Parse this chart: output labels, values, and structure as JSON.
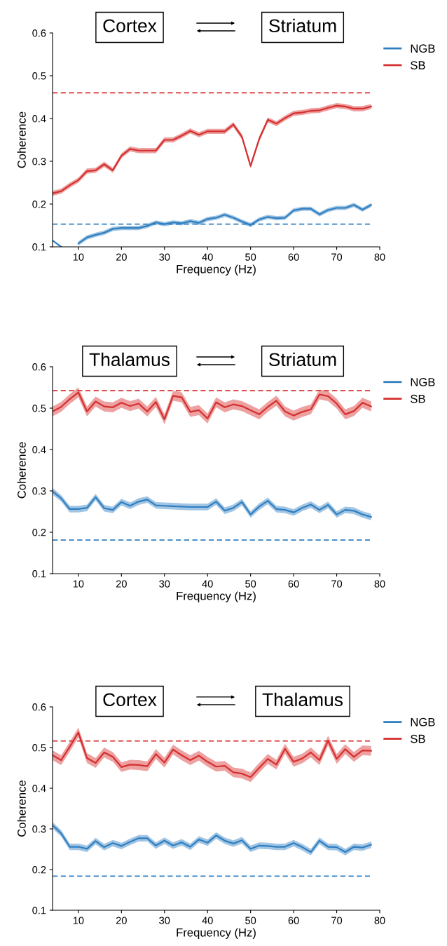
{
  "chart_data": [
    {
      "type": "line",
      "annotations": [
        "Cortex",
        "Striatum"
      ],
      "xlabel": "Frequency (Hz)",
      "ylabel": "Coherence",
      "xlim": [
        4,
        80
      ],
      "xticks": [
        10,
        20,
        30,
        40,
        50,
        60,
        70,
        80
      ],
      "ylim": [
        0.1,
        0.6
      ],
      "yticks": [
        0.1,
        0.2,
        0.3,
        0.4,
        0.5,
        0.6
      ],
      "legend": "right",
      "grid": false,
      "x": [
        4,
        6,
        8,
        10,
        12,
        14,
        16,
        18,
        20,
        22,
        24,
        26,
        28,
        30,
        32,
        34,
        36,
        38,
        40,
        42,
        44,
        46,
        48,
        50,
        52,
        54,
        56,
        58,
        60,
        62,
        64,
        66,
        68,
        70,
        72,
        74,
        76,
        78
      ],
      "series": [
        {
          "name": "NGB",
          "color": "#2f7fc1",
          "values": [
            0.115,
            0.1,
            null,
            0.108,
            0.122,
            0.128,
            0.133,
            0.142,
            0.144,
            0.144,
            0.144,
            0.149,
            0.157,
            0.153,
            0.157,
            0.155,
            0.16,
            0.156,
            0.165,
            0.168,
            0.175,
            0.168,
            0.159,
            0.151,
            0.164,
            0.17,
            0.167,
            0.168,
            0.185,
            0.189,
            0.189,
            0.176,
            0.186,
            0.191,
            0.191,
            0.198,
            0.187,
            0.198
          ],
          "lower": [
            null,
            null,
            null,
            0.103,
            0.117,
            0.123,
            0.128,
            0.137,
            0.139,
            0.139,
            0.139,
            0.144,
            0.152,
            0.148,
            0.152,
            0.15,
            0.155,
            0.151,
            0.16,
            0.163,
            0.17,
            0.163,
            0.154,
            0.146,
            0.159,
            0.165,
            0.162,
            0.163,
            0.18,
            0.184,
            0.184,
            0.171,
            0.181,
            0.186,
            0.186,
            0.193,
            0.182,
            0.193
          ],
          "upper": [
            null,
            null,
            null,
            0.113,
            0.127,
            0.133,
            0.138,
            0.147,
            0.149,
            0.149,
            0.149,
            0.154,
            0.162,
            0.158,
            0.162,
            0.16,
            0.165,
            0.161,
            0.17,
            0.173,
            0.18,
            0.173,
            0.164,
            0.156,
            0.169,
            0.175,
            0.172,
            0.173,
            0.19,
            0.194,
            0.194,
            0.181,
            0.191,
            0.196,
            0.196,
            0.203,
            0.192,
            0.203
          ]
        },
        {
          "name": "SB",
          "color": "#d62f2f",
          "values": [
            0.225,
            0.23,
            0.244,
            0.256,
            0.277,
            0.279,
            0.293,
            0.279,
            0.313,
            0.329,
            0.325,
            0.325,
            0.325,
            0.35,
            0.35,
            0.36,
            0.371,
            0.362,
            0.37,
            0.37,
            0.37,
            0.386,
            0.357,
            0.289,
            0.352,
            0.397,
            0.388,
            0.401,
            0.412,
            0.414,
            0.418,
            0.419,
            0.425,
            0.43,
            0.428,
            0.423,
            0.423,
            0.428
          ],
          "lower": [
            0.219,
            0.224,
            0.238,
            0.25,
            0.271,
            0.273,
            0.287,
            0.273,
            0.307,
            0.323,
            0.319,
            0.319,
            0.319,
            0.344,
            0.344,
            0.354,
            0.365,
            0.356,
            0.364,
            0.364,
            0.364,
            0.38,
            0.351,
            0.283,
            0.346,
            0.391,
            0.382,
            0.395,
            0.406,
            0.408,
            0.412,
            0.413,
            0.419,
            0.424,
            0.422,
            0.417,
            0.417,
            0.422
          ],
          "upper": [
            0.231,
            0.236,
            0.25,
            0.262,
            0.283,
            0.285,
            0.299,
            0.285,
            0.319,
            0.335,
            0.331,
            0.331,
            0.331,
            0.356,
            0.356,
            0.366,
            0.377,
            0.368,
            0.376,
            0.376,
            0.376,
            0.392,
            0.363,
            0.295,
            0.358,
            0.403,
            0.394,
            0.407,
            0.418,
            0.42,
            0.424,
            0.425,
            0.431,
            0.436,
            0.434,
            0.429,
            0.429,
            0.434
          ]
        }
      ],
      "ref_lines": [
        {
          "axis": "y",
          "value": 0.46,
          "color": "#d62f2f",
          "line_style": "dashed"
        },
        {
          "axis": "y",
          "value": 0.153,
          "color": "#2f7fc1",
          "line_style": "dashed"
        }
      ]
    },
    {
      "type": "line",
      "annotations": [
        "Thalamus",
        "Striatum"
      ],
      "xlabel": "Frequency (Hz)",
      "ylabel": "Coherence",
      "xlim": [
        4,
        80
      ],
      "xticks": [
        10,
        20,
        30,
        40,
        50,
        60,
        70,
        80
      ],
      "ylim": [
        0.1,
        0.6
      ],
      "yticks": [
        0.1,
        0.2,
        0.3,
        0.4,
        0.5,
        0.6
      ],
      "legend": "right",
      "grid": false,
      "x": [
        4,
        6,
        8,
        10,
        12,
        14,
        16,
        18,
        20,
        22,
        24,
        26,
        28,
        30,
        32,
        34,
        36,
        38,
        40,
        42,
        44,
        46,
        48,
        50,
        52,
        54,
        56,
        58,
        60,
        62,
        64,
        66,
        68,
        70,
        72,
        74,
        76,
        78
      ],
      "series": [
        {
          "name": "NGB",
          "color": "#2f7fc1",
          "values": [
            0.299,
            0.282,
            0.256,
            0.256,
            0.259,
            0.285,
            0.258,
            0.254,
            0.273,
            0.264,
            0.274,
            0.279,
            0.265,
            0.264,
            0.263,
            0.262,
            0.261,
            0.261,
            0.261,
            0.274,
            0.252,
            0.259,
            0.273,
            0.243,
            0.262,
            0.276,
            0.256,
            0.254,
            0.248,
            0.259,
            0.267,
            0.254,
            0.266,
            0.243,
            0.254,
            0.252,
            0.243,
            0.237
          ],
          "lower": [
            0.291,
            0.274,
            0.248,
            0.248,
            0.251,
            0.277,
            0.25,
            0.246,
            0.265,
            0.256,
            0.266,
            0.271,
            0.257,
            0.256,
            0.255,
            0.254,
            0.253,
            0.253,
            0.253,
            0.266,
            0.244,
            0.251,
            0.265,
            0.235,
            0.254,
            0.268,
            0.248,
            0.246,
            0.24,
            0.251,
            0.259,
            0.246,
            0.258,
            0.235,
            0.246,
            0.244,
            0.235,
            0.229
          ],
          "upper": [
            0.307,
            0.29,
            0.264,
            0.264,
            0.267,
            0.293,
            0.266,
            0.262,
            0.281,
            0.272,
            0.282,
            0.287,
            0.273,
            0.272,
            0.271,
            0.27,
            0.269,
            0.269,
            0.269,
            0.282,
            0.26,
            0.267,
            0.281,
            0.251,
            0.27,
            0.284,
            0.264,
            0.262,
            0.256,
            0.267,
            0.275,
            0.262,
            0.274,
            0.251,
            0.262,
            0.26,
            0.251,
            0.245
          ]
        },
        {
          "name": "SB",
          "color": "#d62f2f",
          "values": [
            0.492,
            0.503,
            0.522,
            0.538,
            0.492,
            0.516,
            0.504,
            0.502,
            0.513,
            0.505,
            0.511,
            0.492,
            0.515,
            0.473,
            0.53,
            0.526,
            0.491,
            0.495,
            0.475,
            0.514,
            0.502,
            0.509,
            0.505,
            0.495,
            0.485,
            0.503,
            0.518,
            0.492,
            0.482,
            0.491,
            0.497,
            0.533,
            0.529,
            0.511,
            0.485,
            0.493,
            0.513,
            0.504
          ],
          "lower": [
            0.48,
            0.491,
            0.51,
            0.526,
            0.48,
            0.504,
            0.492,
            0.49,
            0.501,
            0.493,
            0.499,
            0.48,
            0.503,
            0.461,
            0.518,
            0.514,
            0.479,
            0.483,
            0.463,
            0.502,
            0.49,
            0.497,
            0.493,
            0.483,
            0.473,
            0.491,
            0.506,
            0.48,
            0.47,
            0.479,
            0.485,
            0.521,
            0.517,
            0.499,
            0.473,
            0.481,
            0.501,
            0.492
          ],
          "upper": [
            0.504,
            0.515,
            0.534,
            0.55,
            0.504,
            0.528,
            0.516,
            0.514,
            0.525,
            0.517,
            0.523,
            0.504,
            0.527,
            0.485,
            0.542,
            0.538,
            0.503,
            0.507,
            0.487,
            0.526,
            0.514,
            0.521,
            0.517,
            0.507,
            0.497,
            0.515,
            0.53,
            0.504,
            0.494,
            0.503,
            0.509,
            0.545,
            0.541,
            0.523,
            0.497,
            0.505,
            0.525,
            0.516
          ]
        }
      ],
      "ref_lines": [
        {
          "axis": "y",
          "value": 0.542,
          "color": "#d62f2f",
          "line_style": "dashed"
        },
        {
          "axis": "y",
          "value": 0.181,
          "color": "#2f7fc1",
          "line_style": "dashed"
        }
      ]
    },
    {
      "type": "line",
      "annotations": [
        "Cortex",
        "Thalamus"
      ],
      "xlabel": "Frequency (Hz)",
      "ylabel": "Coherence",
      "xlim": [
        4,
        80
      ],
      "xticks": [
        10,
        20,
        30,
        40,
        50,
        60,
        70,
        80
      ],
      "ylim": [
        0.1,
        0.6
      ],
      "yticks": [
        0.1,
        0.2,
        0.3,
        0.4,
        0.5,
        0.6
      ],
      "legend": "right",
      "grid": false,
      "x": [
        4,
        6,
        8,
        10,
        12,
        14,
        16,
        18,
        20,
        22,
        24,
        26,
        28,
        30,
        32,
        34,
        36,
        38,
        40,
        42,
        44,
        46,
        48,
        50,
        52,
        54,
        56,
        58,
        60,
        62,
        64,
        66,
        68,
        70,
        72,
        74,
        76,
        78
      ],
      "series": [
        {
          "name": "NGB",
          "color": "#2f7fc1",
          "values": [
            0.309,
            0.289,
            0.256,
            0.256,
            0.251,
            0.27,
            0.255,
            0.265,
            0.258,
            0.268,
            0.277,
            0.277,
            0.259,
            0.271,
            0.259,
            0.267,
            0.256,
            0.274,
            0.266,
            0.284,
            0.271,
            0.264,
            0.272,
            0.251,
            0.259,
            0.258,
            0.256,
            0.256,
            0.265,
            0.255,
            0.243,
            0.271,
            0.256,
            0.255,
            0.243,
            0.256,
            0.254,
            0.261
          ],
          "lower": [
            0.301,
            0.281,
            0.248,
            0.248,
            0.243,
            0.262,
            0.247,
            0.257,
            0.25,
            0.26,
            0.269,
            0.269,
            0.251,
            0.263,
            0.251,
            0.259,
            0.248,
            0.266,
            0.258,
            0.276,
            0.263,
            0.256,
            0.264,
            0.243,
            0.251,
            0.25,
            0.248,
            0.248,
            0.257,
            0.247,
            0.235,
            0.263,
            0.248,
            0.247,
            0.235,
            0.248,
            0.246,
            0.253
          ],
          "upper": [
            0.317,
            0.297,
            0.264,
            0.264,
            0.259,
            0.278,
            0.263,
            0.273,
            0.266,
            0.276,
            0.285,
            0.285,
            0.267,
            0.279,
            0.267,
            0.275,
            0.264,
            0.282,
            0.274,
            0.292,
            0.279,
            0.272,
            0.28,
            0.259,
            0.267,
            0.266,
            0.264,
            0.264,
            0.273,
            0.263,
            0.251,
            0.279,
            0.264,
            0.263,
            0.251,
            0.264,
            0.262,
            0.269
          ]
        },
        {
          "name": "SB",
          "color": "#d62f2f",
          "values": [
            0.481,
            0.469,
            0.502,
            0.537,
            0.474,
            0.462,
            0.488,
            0.477,
            0.452,
            0.458,
            0.457,
            0.454,
            0.484,
            0.463,
            0.495,
            0.481,
            0.469,
            0.48,
            0.465,
            0.453,
            0.455,
            0.439,
            0.436,
            0.427,
            0.45,
            0.472,
            0.458,
            0.497,
            0.465,
            0.473,
            0.488,
            0.469,
            0.517,
            0.472,
            0.496,
            0.477,
            0.493,
            0.492
          ],
          "lower": [
            0.469,
            0.457,
            0.49,
            0.525,
            0.462,
            0.45,
            0.476,
            0.465,
            0.44,
            0.446,
            0.445,
            0.442,
            0.472,
            0.451,
            0.483,
            0.469,
            0.457,
            0.468,
            0.453,
            0.441,
            0.443,
            0.427,
            0.424,
            0.415,
            0.438,
            0.46,
            0.446,
            0.485,
            0.453,
            0.461,
            0.476,
            0.457,
            0.505,
            0.46,
            0.484,
            0.465,
            0.481,
            0.48
          ],
          "upper": [
            0.493,
            0.481,
            0.514,
            0.549,
            0.486,
            0.474,
            0.5,
            0.489,
            0.464,
            0.47,
            0.469,
            0.466,
            0.496,
            0.475,
            0.507,
            0.493,
            0.481,
            0.492,
            0.477,
            0.465,
            0.467,
            0.451,
            0.448,
            0.439,
            0.462,
            0.484,
            0.47,
            0.509,
            0.477,
            0.485,
            0.5,
            0.481,
            0.529,
            0.484,
            0.508,
            0.489,
            0.505,
            0.504
          ]
        }
      ],
      "ref_lines": [
        {
          "axis": "y",
          "value": 0.516,
          "color": "#d62f2f",
          "line_style": "dashed"
        },
        {
          "axis": "y",
          "value": 0.184,
          "color": "#2f7fc1",
          "line_style": "dashed"
        }
      ]
    }
  ]
}
